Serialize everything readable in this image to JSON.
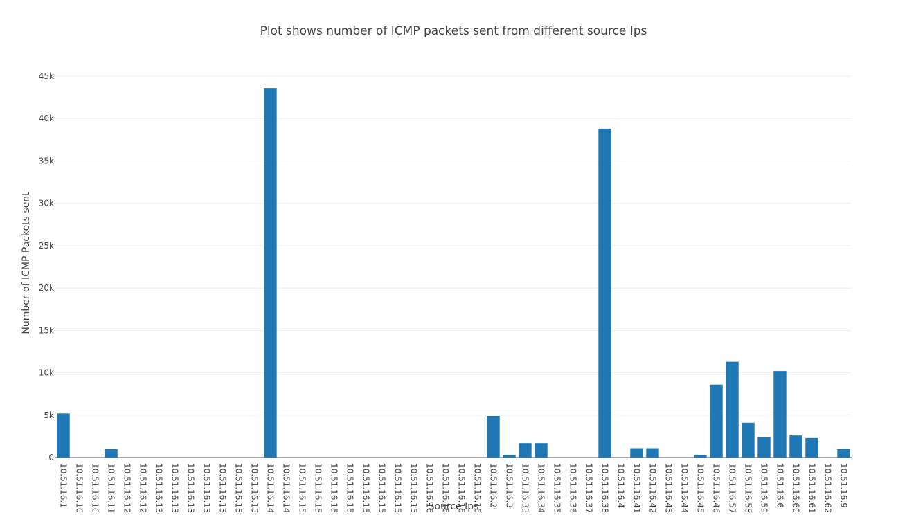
{
  "chart_data": {
    "type": "bar",
    "title": "Plot shows number of ICMP packets sent from different source Ips",
    "xlabel": "Source Ips",
    "ylabel": "Number of ICMP Packets sent",
    "ylim": [
      0,
      45000
    ],
    "yticks": [
      {
        "value": 0,
        "label": "0"
      },
      {
        "value": 5000,
        "label": "5k"
      },
      {
        "value": 10000,
        "label": "10k"
      },
      {
        "value": 15000,
        "label": "15k"
      },
      {
        "value": 20000,
        "label": "20k"
      },
      {
        "value": 25000,
        "label": "25k"
      },
      {
        "value": 30000,
        "label": "30k"
      },
      {
        "value": 35000,
        "label": "35k"
      },
      {
        "value": 40000,
        "label": "40k"
      },
      {
        "value": 45000,
        "label": "45k"
      }
    ],
    "grid": true,
    "legend": false,
    "bar_color": "#1f77b4",
    "categories": [
      "10.51.16.1",
      "10.51.16.10",
      "10.51.16.10",
      "10.51.16.11",
      "10.51.16.12",
      "10.51.16.12",
      "10.51.16.13",
      "10.51.16.13",
      "10.51.16.13",
      "10.51.16.13",
      "10.51.16.13",
      "10.51.16.13",
      "10.51.16.13",
      "10.51.16.14",
      "10.51.16.14",
      "10.51.16.15",
      "10.51.16.15",
      "10.51.16.15",
      "10.51.16.15",
      "10.51.16.15",
      "10.51.16.15",
      "10.51.16.15",
      "10.51.16.15",
      "10.51.16.16",
      "10.51.16.16",
      "10.51.16.16",
      "10.51.16.16",
      "10.51.16.2",
      "10.51.16.3",
      "10.51.16.33",
      "10.51.16.34",
      "10.51.16.35",
      "10.51.16.36",
      "10.51.16.37",
      "10.51.16.38",
      "10.51.16.4",
      "10.51.16.41",
      "10.51.16.42",
      "10.51.16.43",
      "10.51.16.44",
      "10.51.16.45",
      "10.51.16.46",
      "10.51.16.57",
      "10.51.16.58",
      "10.51.16.59",
      "10.51.16.6",
      "10.51.16.60",
      "10.51.16.61",
      "10.51.16.62",
      "10.51.16.9"
    ],
    "values": [
      5200,
      0,
      0,
      1000,
      0,
      0,
      0,
      0,
      0,
      0,
      0,
      0,
      0,
      43600,
      0,
      0,
      0,
      0,
      0,
      0,
      0,
      0,
      0,
      0,
      0,
      0,
      0,
      4900,
      300,
      1700,
      1700,
      0,
      0,
      0,
      38800,
      0,
      1100,
      1100,
      0,
      0,
      300,
      8600,
      11300,
      4100,
      2400,
      10200,
      2600,
      2300,
      0,
      1000
    ]
  }
}
